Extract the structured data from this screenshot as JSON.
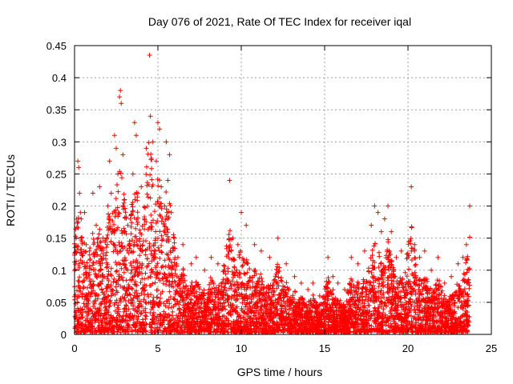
{
  "chart_data": {
    "type": "scatter",
    "title": "Day 076 of 2021, Rate Of TEC Index for receiver iqal",
    "xlabel": "GPS time / hours",
    "ylabel": "ROTI / TECUs",
    "xlim": [
      0,
      25
    ],
    "ylim": [
      0,
      0.45
    ],
    "x_ticks": [
      "0",
      "5",
      "10",
      "15",
      "20",
      "25"
    ],
    "y_ticks": [
      "0",
      "0.05",
      "0.1",
      "0.15",
      "0.2",
      "0.25",
      "0.3",
      "0.35",
      "0.4",
      "0.45"
    ],
    "grid": true,
    "marker": "+",
    "series": [
      {
        "color": "#ff0000",
        "points": [
          [
            0.1,
            0.15
          ],
          [
            0.2,
            0.27
          ],
          [
            0.25,
            0.26
          ],
          [
            0.3,
            0.22
          ],
          [
            0.35,
            0.19
          ],
          [
            0.4,
            0.18
          ],
          [
            0.6,
            0.19
          ],
          [
            0.7,
            0.14
          ],
          [
            0.9,
            0.13
          ],
          [
            1.1,
            0.22
          ],
          [
            1.3,
            0.17
          ],
          [
            1.5,
            0.23
          ],
          [
            1.7,
            0.15
          ],
          [
            2.0,
            0.2
          ],
          [
            2.1,
            0.27
          ],
          [
            2.2,
            0.22
          ],
          [
            2.3,
            0.16
          ],
          [
            2.4,
            0.31
          ],
          [
            2.5,
            0.29
          ],
          [
            2.6,
            0.25
          ],
          [
            2.7,
            0.37
          ],
          [
            2.75,
            0.38
          ],
          [
            2.8,
            0.36
          ],
          [
            2.9,
            0.28
          ],
          [
            3.0,
            0.21
          ],
          [
            3.2,
            0.17
          ],
          [
            3.5,
            0.25
          ],
          [
            3.6,
            0.33
          ],
          [
            3.7,
            0.31
          ],
          [
            3.8,
            0.22
          ],
          [
            4.0,
            0.23
          ],
          [
            4.2,
            0.18
          ],
          [
            4.3,
            0.29
          ],
          [
            4.5,
            0.435
          ],
          [
            4.55,
            0.34
          ],
          [
            4.7,
            0.3
          ],
          [
            4.9,
            0.27
          ],
          [
            5.0,
            0.33
          ],
          [
            5.1,
            0.32
          ],
          [
            5.2,
            0.23
          ],
          [
            5.4,
            0.2
          ],
          [
            5.5,
            0.3
          ],
          [
            5.6,
            0.24
          ],
          [
            5.7,
            0.28
          ],
          [
            5.8,
            0.19
          ],
          [
            6.0,
            0.15
          ],
          [
            6.2,
            0.12
          ],
          [
            6.5,
            0.14
          ],
          [
            7.0,
            0.11
          ],
          [
            7.3,
            0.12
          ],
          [
            7.8,
            0.1
          ],
          [
            8.2,
            0.12
          ],
          [
            8.6,
            0.11
          ],
          [
            9.0,
            0.1
          ],
          [
            9.3,
            0.24
          ],
          [
            9.5,
            0.15
          ],
          [
            9.8,
            0.14
          ],
          [
            10.0,
            0.19
          ],
          [
            10.3,
            0.17
          ],
          [
            10.8,
            0.14
          ],
          [
            11.2,
            0.13
          ],
          [
            11.7,
            0.12
          ],
          [
            12.2,
            0.15
          ],
          [
            12.7,
            0.11
          ],
          [
            13.2,
            0.09
          ],
          [
            13.6,
            0.08
          ],
          [
            14.0,
            0.07
          ],
          [
            14.3,
            0.08
          ],
          [
            14.7,
            0.06
          ],
          [
            15.0,
            0.05
          ],
          [
            15.2,
            0.12
          ],
          [
            15.5,
            0.09
          ],
          [
            15.8,
            0.08
          ],
          [
            16.2,
            0.07
          ],
          [
            16.6,
            0.12
          ],
          [
            17.0,
            0.11
          ],
          [
            17.4,
            0.13
          ],
          [
            17.8,
            0.17
          ],
          [
            18.0,
            0.2
          ],
          [
            18.2,
            0.19
          ],
          [
            18.4,
            0.16
          ],
          [
            18.6,
            0.18
          ],
          [
            18.8,
            0.2
          ],
          [
            19.0,
            0.16
          ],
          [
            19.3,
            0.12
          ],
          [
            19.6,
            0.13
          ],
          [
            20.0,
            0.12
          ],
          [
            20.2,
            0.23
          ],
          [
            20.4,
            0.14
          ],
          [
            20.7,
            0.12
          ],
          [
            21.0,
            0.13
          ],
          [
            21.4,
            0.1
          ],
          [
            21.8,
            0.12
          ],
          [
            22.2,
            0.08
          ],
          [
            22.6,
            0.09
          ],
          [
            23.0,
            0.11
          ],
          [
            23.3,
            0.12
          ],
          [
            23.5,
            0.14
          ],
          [
            23.7,
            0.2
          ]
        ]
      }
    ]
  }
}
